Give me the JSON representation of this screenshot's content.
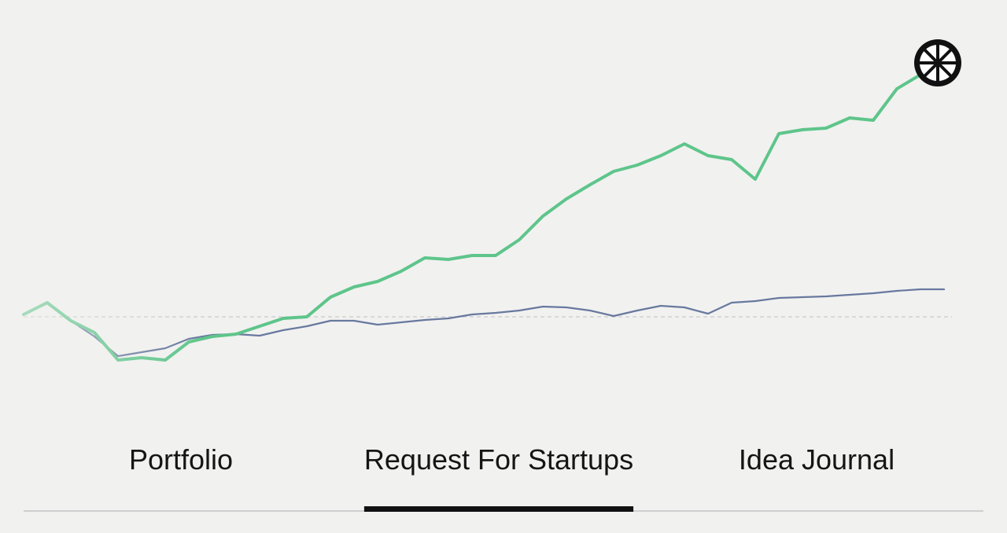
{
  "chart_data": {
    "type": "line",
    "x": [
      30,
      60,
      90,
      120,
      150,
      180,
      210,
      240,
      270,
      300,
      330,
      360,
      390,
      420,
      450,
      480,
      510,
      540,
      570,
      600,
      630,
      660,
      690,
      720,
      750,
      780,
      810,
      840,
      870,
      900,
      930,
      960,
      990,
      1020,
      1050,
      1080,
      1110,
      1140,
      1170,
      1200
    ],
    "series": [
      {
        "color": "#5ec58a",
        "values": [
          3,
          18,
          -5,
          -20,
          -55,
          -52,
          -55,
          -32,
          -25,
          -22,
          -12,
          -2,
          0,
          25,
          38,
          45,
          58,
          75,
          73,
          78,
          78,
          98,
          128,
          150,
          168,
          185,
          193,
          205,
          220,
          205,
          200,
          175,
          233,
          238,
          240,
          253,
          250,
          290,
          308,
          null
        ]
      },
      {
        "color": "#68799e",
        "values": [
          3,
          18,
          -5,
          -25,
          -50,
          -45,
          -40,
          -28,
          -23,
          -22,
          -24,
          -17,
          -12,
          -5,
          -5,
          -10,
          -7,
          -4,
          -2,
          3,
          5,
          8,
          13,
          12,
          8,
          1,
          8,
          14,
          12,
          4,
          18,
          20,
          24,
          25,
          26,
          28,
          30,
          33,
          35,
          35
        ]
      }
    ],
    "xlim": [
      0,
      1280
    ],
    "ylim": [
      -103,
      403
    ],
    "reference_line": 0
  },
  "tabs": {
    "items": [
      "Portfolio",
      "Request For Startups",
      "Idea Journal"
    ],
    "active": 1
  }
}
